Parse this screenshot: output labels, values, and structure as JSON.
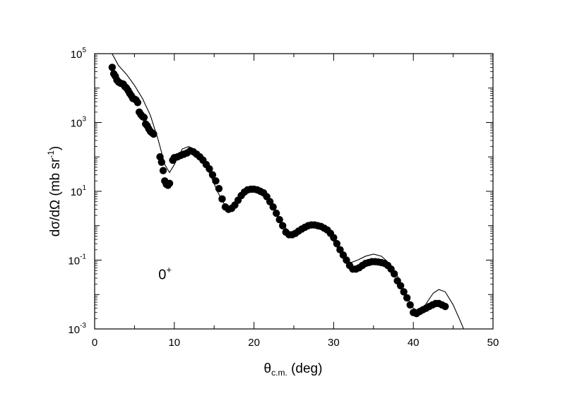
{
  "chart_data": {
    "type": "scatter",
    "xlim": [
      0,
      50
    ],
    "ylim_log10": [
      -3,
      5
    ],
    "yscale": "log",
    "grid": false,
    "x_ticks": [
      0,
      10,
      20,
      30,
      40,
      50
    ],
    "x_tick_labels": [
      "0",
      "10",
      "20",
      "30",
      "40",
      "50"
    ],
    "y_major_ticks_log10": [
      -3,
      -1,
      1,
      3,
      5
    ],
    "y_tick_labels": [
      {
        "base": "10",
        "exp": "-3"
      },
      {
        "base": "10",
        "exp": "-1"
      },
      {
        "base": "10",
        "exp": "1"
      },
      {
        "base": "10",
        "exp": "3"
      },
      {
        "base": "10",
        "exp": "5"
      }
    ],
    "xlabel": {
      "main": "θ",
      "sub": "c.m.",
      "rest": " (deg)"
    },
    "ylabel": {
      "main": "dσ/dΩ (mb sr",
      "sup": "-1",
      "rest": ")"
    },
    "annotation": {
      "text": "0",
      "sup": "+",
      "x": 8.0,
      "y_log10": -1.55
    },
    "colors": {
      "data": "#000000",
      "curve": "#000000",
      "axis": "#000000"
    },
    "series": [
      {
        "kind": "points",
        "x": [
          2.2,
          2.4,
          2.6,
          2.8,
          3.0,
          3.2,
          3.4,
          3.6,
          3.8,
          4.0,
          4.2,
          4.4,
          4.6,
          4.8,
          5.0,
          5.2,
          5.4,
          5.6,
          5.8,
          6.0,
          6.2,
          6.4,
          6.6,
          6.8,
          7.0,
          7.2,
          7.4,
          8.2,
          8.4,
          8.6,
          8.8,
          9.0,
          9.2,
          9.4,
          9.8,
          10.0,
          10.4,
          10.8,
          11.2,
          11.6,
          12.0,
          12.4,
          12.8,
          13.2,
          13.6,
          14.0,
          14.4,
          14.8,
          15.2,
          15.6,
          16.0,
          16.4,
          16.8,
          17.2,
          17.6,
          18.0,
          18.4,
          18.8,
          19.2,
          19.6,
          20.0,
          20.4,
          20.8,
          21.2,
          21.6,
          22.0,
          22.4,
          22.8,
          23.2,
          23.6,
          24.0,
          24.4,
          24.8,
          25.2,
          25.6,
          26.0,
          26.4,
          26.8,
          27.2,
          27.6,
          28.0,
          28.4,
          28.8,
          29.2,
          29.6,
          30.0,
          30.4,
          30.8,
          31.2,
          31.6,
          32.0,
          32.4,
          32.8,
          33.2,
          33.6,
          34.0,
          34.4,
          34.8,
          35.2,
          35.6,
          36.0,
          36.4,
          36.8,
          37.2,
          37.6,
          38.0,
          38.4,
          38.8,
          39.2,
          39.6,
          40.0,
          40.4,
          40.8,
          41.2,
          41.6,
          42.0,
          42.4,
          42.8,
          43.2,
          43.6,
          44.0
        ],
        "y": [
          40000,
          26000,
          22000,
          17000,
          15000,
          14000,
          13500,
          13000,
          11000,
          10000,
          8500,
          7000,
          6000,
          5000,
          4800,
          4500,
          3800,
          2000,
          1700,
          1500,
          1400,
          900,
          800,
          650,
          550,
          500,
          460,
          100,
          70,
          40,
          20,
          16,
          15,
          17,
          80,
          95,
          100,
          110,
          120,
          130,
          150,
          140,
          120,
          100,
          80,
          60,
          45,
          30,
          20,
          12,
          6,
          3.5,
          3,
          3.2,
          4,
          5.5,
          7.5,
          9.5,
          11,
          11.5,
          11.5,
          11,
          10,
          9,
          7,
          5,
          3.5,
          2.3,
          1.5,
          1.0,
          0.65,
          0.55,
          0.55,
          0.6,
          0.7,
          0.8,
          0.9,
          1.0,
          1.05,
          1.05,
          1.0,
          0.95,
          0.85,
          0.75,
          0.6,
          0.45,
          0.3,
          0.2,
          0.14,
          0.1,
          0.07,
          0.055,
          0.055,
          0.06,
          0.07,
          0.08,
          0.085,
          0.09,
          0.09,
          0.088,
          0.085,
          0.08,
          0.07,
          0.055,
          0.04,
          0.025,
          0.018,
          0.012,
          0.008,
          0.005,
          0.003,
          0.0028,
          0.0032,
          0.0036,
          0.004,
          0.0045,
          0.005,
          0.0055,
          0.0055,
          0.005,
          0.0045
        ]
      },
      {
        "kind": "line",
        "x": [
          2.0,
          3.0,
          4.0,
          5.0,
          6.0,
          7.0,
          8.0,
          8.8,
          9.4,
          10.0,
          11.0,
          11.8,
          12.5,
          13.5,
          14.5,
          15.5,
          16.5,
          17.2,
          18.0,
          19.0,
          19.8,
          20.5,
          21.5,
          22.5,
          23.5,
          24.5,
          25.0,
          26.0,
          27.0,
          27.6,
          28.5,
          29.5,
          30.5,
          31.5,
          32.2,
          33.0,
          34.0,
          35.0,
          36.0,
          37.0,
          38.0,
          39.0,
          40.0,
          40.7,
          41.5,
          42.5,
          43.2,
          44.0,
          45.0,
          46.0,
          47.0,
          48.0
        ],
        "y": [
          120000,
          45000,
          25000,
          12000,
          5000,
          1600,
          300,
          60,
          35,
          60,
          170,
          200,
          170,
          90,
          30,
          9,
          3.4,
          3,
          5,
          11,
          14,
          12.5,
          7,
          3,
          1.2,
          0.6,
          0.55,
          0.8,
          1.2,
          1.25,
          1.0,
          0.55,
          0.22,
          0.1,
          0.085,
          0.1,
          0.13,
          0.15,
          0.13,
          0.08,
          0.035,
          0.011,
          0.004,
          0.0033,
          0.005,
          0.011,
          0.014,
          0.012,
          0.005,
          0.0015,
          0.0004,
          0.0001
        ]
      }
    ]
  }
}
